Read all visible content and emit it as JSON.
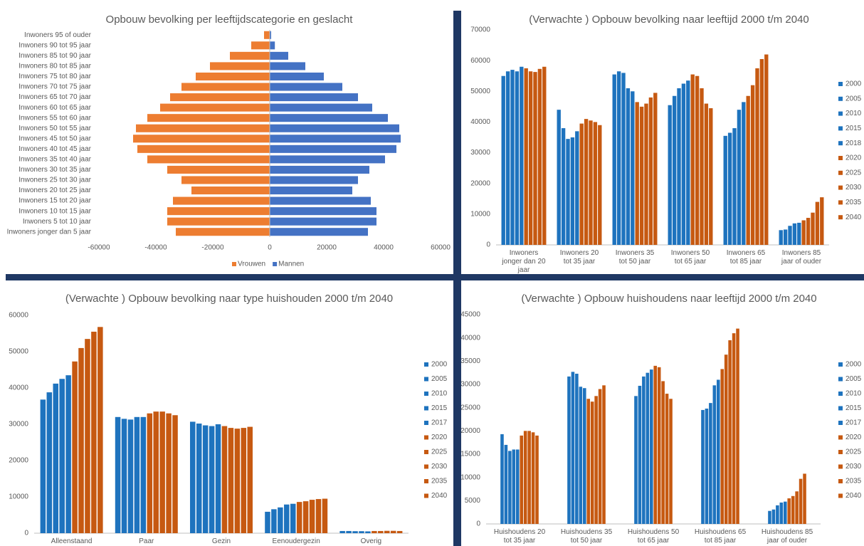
{
  "chart_data": [
    {
      "type": "hbar",
      "title": "Opbouw bevolking per leeftijdscategorie en geslacht",
      "categories": [
        "Inwoners 95 of ouder",
        "Inwoners 90 tot 95 jaar",
        "Inwoners 85 tot 90 jaar",
        "Inwoners 80 tot 85 jaar",
        "Inwoners 75 tot 80 jaar",
        "Inwoners 70 tot 75 jaar",
        "Inwoners 65 tot 70 jaar",
        "Inwoners 60 tot 65 jaar",
        "Inwoners 55 tot 60 jaar",
        "Inwoners 50 tot 55 jaar",
        "Inwoners 45 tot 50 jaar",
        "Inwoners 40 tot 45 jaar",
        "Inwoners 35 tot 40 jaar",
        "Inwoners 30 tot 35 jaar",
        "Inwoners 25 tot 30 jaar",
        "Inwoners 20 tot 25 jaar",
        "Inwoners 15 tot 20 jaar",
        "Inwoners 10 tot 15 jaar",
        "Inwoners 5 tot 10 jaar",
        "Inwoners jonger dan 5 jaar"
      ],
      "series": [
        {
          "name": "Vrouwen",
          "color": "#ed7d31",
          "values": [
            -2000,
            -6500,
            -14000,
            -21000,
            -26000,
            -31000,
            -35000,
            -38500,
            -43000,
            -47000,
            -48000,
            -46500,
            -43000,
            -36000,
            -31000,
            -27500,
            -34000,
            -36000,
            -36000,
            -33000
          ]
        },
        {
          "name": "Mannen",
          "color": "#4472c4",
          "values": [
            500,
            1800,
            6500,
            12500,
            19000,
            25500,
            31000,
            36000,
            41500,
            45500,
            46000,
            44500,
            40500,
            35000,
            31000,
            29000,
            35500,
            37500,
            37500,
            34500
          ]
        }
      ],
      "xlim": [
        -60000,
        60000
      ],
      "xticks": [
        -60000,
        -40000,
        -20000,
        0,
        20000,
        40000,
        60000
      ],
      "grid": false,
      "legend": "bottom"
    },
    {
      "type": "bar",
      "title": "(Verwachte ) Opbouw bevolking naar leeftijd 2000 t/m 2040",
      "categories": [
        "Inwoners jonger dan 20 jaar",
        "Inwoners 20 tot 35 jaar",
        "Inwoners 35 tot 50 jaar",
        "Inwoners 50 tot 65 jaar",
        "Inwoners 65 tot 85 jaar",
        "Inwoners 85 jaar of ouder"
      ],
      "series": [
        {
          "name": "2000",
          "color": "#1e73be",
          "values": [
            55000,
            44000,
            55500,
            45500,
            35500,
            4800
          ]
        },
        {
          "name": "2005",
          "color": "#1e73be",
          "values": [
            56500,
            38000,
            56500,
            48500,
            36500,
            5000
          ]
        },
        {
          "name": "2010",
          "color": "#1e73be",
          "values": [
            57000,
            34500,
            56000,
            51000,
            38000,
            6200
          ]
        },
        {
          "name": "2015",
          "color": "#1e73be",
          "values": [
            56500,
            35000,
            51000,
            52500,
            44000,
            7000
          ]
        },
        {
          "name": "2018",
          "color": "#1e73be",
          "values": [
            58000,
            37000,
            50000,
            53500,
            46500,
            7200
          ]
        },
        {
          "name": "2020",
          "color": "#c65911",
          "values": [
            57500,
            39500,
            46500,
            55500,
            48500,
            8000
          ]
        },
        {
          "name": "2025",
          "color": "#c65911",
          "values": [
            56500,
            41000,
            45000,
            55000,
            52000,
            8800
          ]
        },
        {
          "name": "2030",
          "color": "#c65911",
          "values": [
            56300,
            40500,
            46000,
            51000,
            57500,
            10500
          ]
        },
        {
          "name": "2035",
          "color": "#c65911",
          "values": [
            57300,
            40000,
            48000,
            46000,
            60500,
            14000
          ]
        },
        {
          "name": "2040",
          "color": "#c65911",
          "values": [
            58000,
            39000,
            49500,
            44500,
            62000,
            15500
          ]
        }
      ],
      "ylim": [
        0,
        70000
      ],
      "yticks": [
        0,
        10000,
        20000,
        30000,
        40000,
        50000,
        60000,
        70000
      ],
      "grid": false,
      "legend": "right"
    },
    {
      "type": "bar",
      "title": "(Verwachte ) Opbouw bevolking naar type huishouden 2000 t/m 2040",
      "categories": [
        "Alleenstaand",
        "Paar",
        "Gezin",
        "Eenoudergezin",
        "Overig"
      ],
      "series": [
        {
          "name": "2000",
          "color": "#1e73be",
          "values": [
            36800,
            32000,
            30700,
            5900,
            600
          ]
        },
        {
          "name": "2005",
          "color": "#1e73be",
          "values": [
            38800,
            31500,
            30200,
            6600,
            600
          ]
        },
        {
          "name": "2010",
          "color": "#1e73be",
          "values": [
            41200,
            31300,
            29700,
            7100,
            550
          ]
        },
        {
          "name": "2015",
          "color": "#1e73be",
          "values": [
            42500,
            32000,
            29500,
            7900,
            550
          ]
        },
        {
          "name": "2017",
          "color": "#1e73be",
          "values": [
            43500,
            32000,
            30000,
            8100,
            500
          ]
        },
        {
          "name": "2020",
          "color": "#c65911",
          "values": [
            47300,
            33000,
            29500,
            8600,
            600
          ]
        },
        {
          "name": "2025",
          "color": "#c65911",
          "values": [
            51000,
            33500,
            29000,
            8800,
            600
          ]
        },
        {
          "name": "2030",
          "color": "#c65911",
          "values": [
            53500,
            33500,
            28800,
            9200,
            650
          ]
        },
        {
          "name": "2035",
          "color": "#c65911",
          "values": [
            55500,
            33000,
            29000,
            9400,
            650
          ]
        },
        {
          "name": "2040",
          "color": "#c65911",
          "values": [
            56800,
            32500,
            29300,
            9500,
            600
          ]
        }
      ],
      "ylim": [
        0,
        60000
      ],
      "yticks": [
        0,
        10000,
        20000,
        30000,
        40000,
        50000,
        60000
      ],
      "grid": false,
      "legend": "right"
    },
    {
      "type": "bar",
      "title": "(Verwachte ) Opbouw huishoudens naar leeftijd 2000 t/m 2040",
      "categories": [
        "Huishoudens 20 tot 35 jaar",
        "Huishoudens 35 tot 50 jaar",
        "Huishoudens 50 tot 65 jaar",
        "Huishoudens 65 tot 85 jaar",
        "Huishoudens 85 jaar of ouder"
      ],
      "series": [
        {
          "name": "2000",
          "color": "#1e73be",
          "values": [
            19300,
            31700,
            27500,
            24500,
            2800
          ]
        },
        {
          "name": "2005",
          "color": "#1e73be",
          "values": [
            17000,
            32700,
            29700,
            24800,
            3100
          ]
        },
        {
          "name": "2010",
          "color": "#1e73be",
          "values": [
            15700,
            32300,
            31700,
            26000,
            4000
          ]
        },
        {
          "name": "2015",
          "color": "#1e73be",
          "values": [
            16000,
            29500,
            32500,
            29800,
            4600
          ]
        },
        {
          "name": "2017",
          "color": "#1e73be",
          "values": [
            16000,
            29200,
            33200,
            31000,
            4800
          ]
        },
        {
          "name": "2020",
          "color": "#c65911",
          "values": [
            19000,
            26900,
            34000,
            33300,
            5500
          ]
        },
        {
          "name": "2025",
          "color": "#c65911",
          "values": [
            20000,
            26300,
            33700,
            36400,
            6000
          ]
        },
        {
          "name": "2030",
          "color": "#c65911",
          "values": [
            20000,
            27500,
            30700,
            39500,
            7000
          ]
        },
        {
          "name": "2035",
          "color": "#c65911",
          "values": [
            19700,
            29000,
            28000,
            41000,
            9700
          ]
        },
        {
          "name": "2040",
          "color": "#c65911",
          "values": [
            19000,
            29800,
            26900,
            42000,
            10800
          ]
        }
      ],
      "ylim": [
        0,
        45000
      ],
      "yticks": [
        0,
        5000,
        10000,
        15000,
        20000,
        25000,
        30000,
        35000,
        40000,
        45000
      ],
      "grid": false,
      "legend": "right"
    }
  ]
}
